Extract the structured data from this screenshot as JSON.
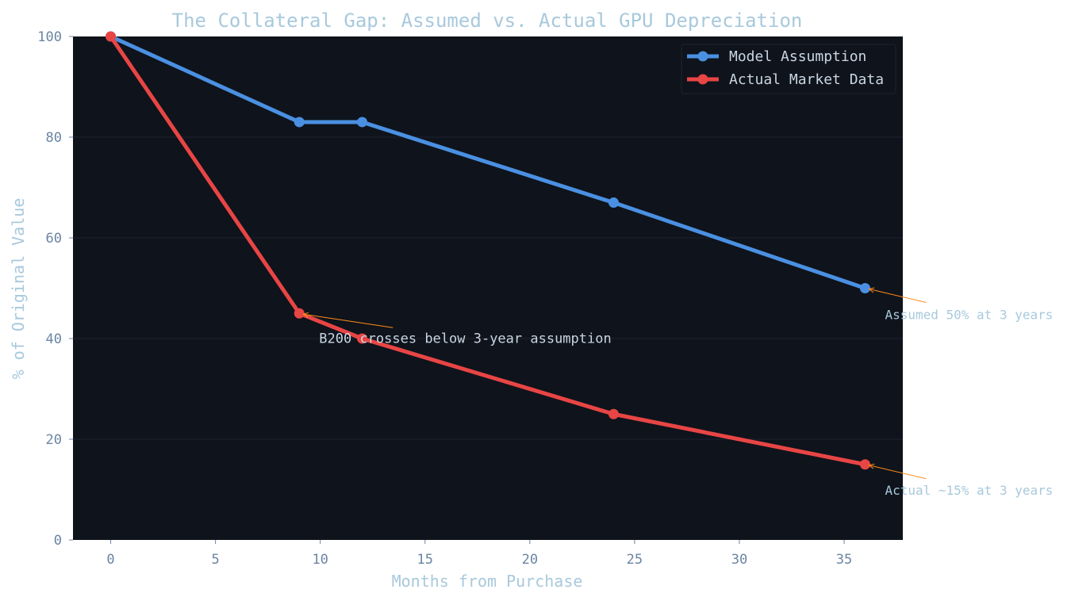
{
  "chart_data": {
    "type": "line",
    "title": "The Collateral Gap: Assumed vs. Actual GPU Depreciation",
    "xlabel": "Months from Purchase",
    "ylabel": "% of Original Value",
    "xlim": [
      -1.8,
      37.8
    ],
    "ylim": [
      0,
      100
    ],
    "xticks": [
      0,
      5,
      10,
      15,
      20,
      25,
      30,
      35
    ],
    "yticks": [
      0,
      20,
      40,
      60,
      80,
      100
    ],
    "grid": "horizontal",
    "legend_position": "top-right",
    "series": [
      {
        "name": "Model Assumption",
        "color": "#4a90e2",
        "x": [
          0,
          9,
          12,
          24,
          36
        ],
        "y": [
          100,
          83,
          83,
          67,
          50
        ]
      },
      {
        "name": "Actual Market Data",
        "color": "#e84545",
        "x": [
          0,
          9,
          12,
          24,
          36
        ],
        "y": [
          100,
          45,
          40,
          25,
          15
        ]
      }
    ],
    "annotations": [
      {
        "text": "B200 crosses below 3-year assumption",
        "point": [
          9,
          45
        ],
        "color": "#c9d6e3",
        "arrow_color": "#ff8c1a"
      },
      {
        "text": "Assumed 50% at 3 years",
        "point": [
          36,
          50
        ],
        "color": "#a8c9dc",
        "arrow_color": "#ff8c1a"
      },
      {
        "text": "Actual ~15% at 3 years",
        "point": [
          36,
          15
        ],
        "color": "#a8c9dc",
        "arrow_color": "#ff8c1a"
      }
    ],
    "colors": {
      "plot_background": "#0f131b",
      "grid": "#1c2332",
      "tick_label": "#6b85a3",
      "axis_label": "#a8c9dc",
      "title": "#a8c9dc",
      "legend_text": "#c9d6e3"
    }
  }
}
